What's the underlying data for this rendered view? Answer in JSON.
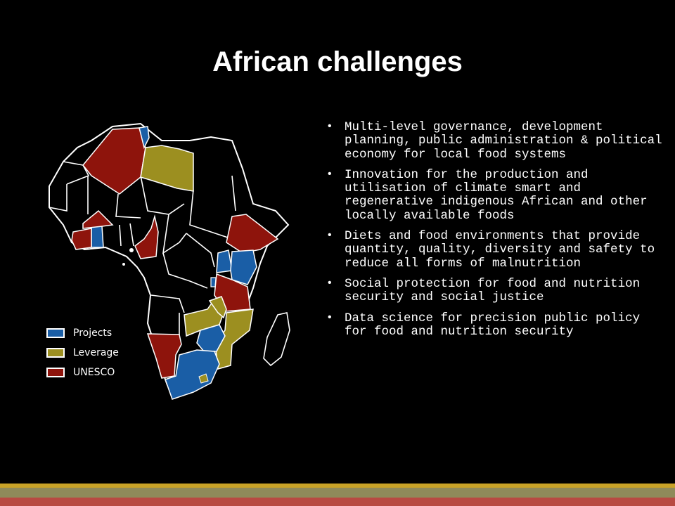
{
  "slide": {
    "title": "African challenges",
    "bullets": [
      "Multi-level governance, development planning, public administration & political economy for local food systems",
      "Innovation for the production and utilisation of climate smart and regenerative indigenous African and other locally available foods",
      "Diets and food environments that provide quantity, quality, diversity and safety to reduce all forms of malnutrition",
      "Social protection for food and nutrition security and social justice",
      "Data science for precision public policy for food and nutrition security"
    ]
  },
  "legend": {
    "items": [
      {
        "label": "Projects",
        "color": "#1a5ea6"
      },
      {
        "label": "Leverage",
        "color": "#9c8f20"
      },
      {
        "label": "UNESCO",
        "color": "#8e140c"
      }
    ]
  },
  "colors": {
    "background": "#000000",
    "project": "#1a5ea6",
    "leverage": "#9c8f20",
    "unesco": "#8e140c",
    "footer_gold": "#c8a227",
    "footer_olive": "#8f8a5a",
    "footer_red": "#b84a42"
  }
}
